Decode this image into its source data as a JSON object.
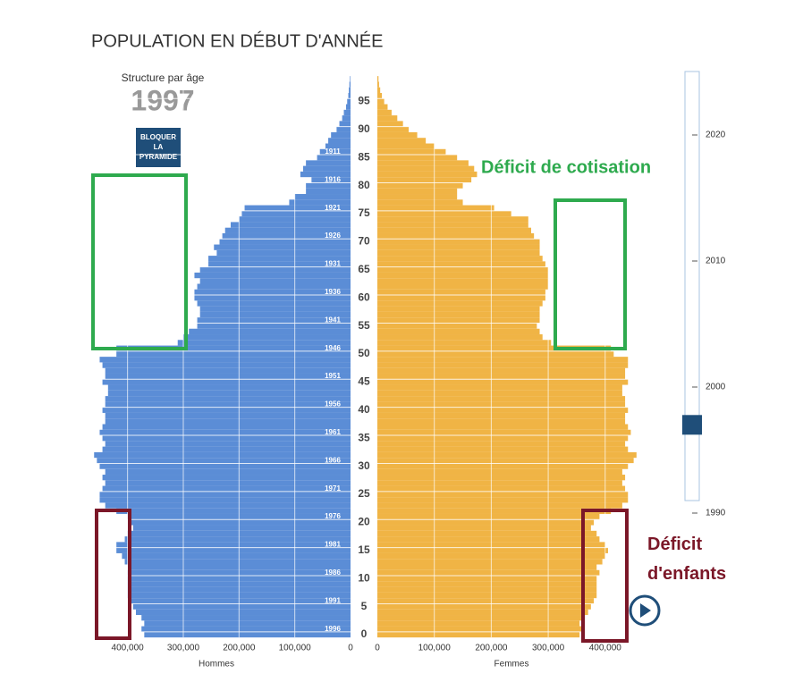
{
  "chart_data": {
    "type": "pyramid",
    "title": "POPULATION EN DÉBUT D'ANNÉE",
    "subtitle": "Structure par âge",
    "button": "BLOQUER LA PYRAMIDE",
    "categories": [
      0,
      1,
      2,
      3,
      4,
      5,
      6,
      7,
      8,
      9,
      10,
      11,
      12,
      13,
      14,
      15,
      16,
      17,
      18,
      19,
      20,
      21,
      22,
      23,
      24,
      25,
      26,
      27,
      28,
      29,
      30,
      31,
      32,
      33,
      34,
      35,
      36,
      37,
      38,
      39,
      40,
      41,
      42,
      43,
      44,
      45,
      46,
      47,
      48,
      49,
      50,
      51,
      52,
      53,
      54,
      55,
      56,
      57,
      58,
      59,
      60,
      61,
      62,
      63,
      64,
      65,
      66,
      67,
      68,
      69,
      70,
      71,
      72,
      73,
      74,
      75,
      76,
      77,
      78,
      79,
      80,
      81,
      82,
      83,
      84,
      85,
      86,
      87,
      88,
      89,
      90,
      91,
      92,
      93,
      94,
      95,
      96,
      97,
      98,
      99
    ],
    "series": [
      {
        "name": "Hommes",
        "color": "#5b8dd6",
        "values": [
          370000,
          375000,
          370000,
          375000,
          385000,
          390000,
          395000,
          400000,
          400000,
          400000,
          400000,
          400000,
          395000,
          405000,
          410000,
          420000,
          420000,
          405000,
          400000,
          390000,
          395000,
          400000,
          420000,
          440000,
          450000,
          450000,
          445000,
          440000,
          445000,
          440000,
          450000,
          455000,
          460000,
          445000,
          440000,
          445000,
          450000,
          445000,
          440000,
          440000,
          445000,
          440000,
          440000,
          435000,
          435000,
          445000,
          440000,
          440000,
          445000,
          450000,
          420000,
          420000,
          310000,
          300000,
          290000,
          275000,
          275000,
          270000,
          270000,
          275000,
          280000,
          280000,
          275000,
          270000,
          280000,
          270000,
          255000,
          255000,
          240000,
          245000,
          235000,
          230000,
          225000,
          215000,
          200000,
          195000,
          190000,
          110000,
          100000,
          80000,
          80000,
          70000,
          90000,
          85000,
          80000,
          60000,
          55000,
          45000,
          40000,
          35000,
          25000,
          20000,
          15000,
          12000,
          8000,
          6000,
          4000,
          3000,
          2000,
          1000
        ]
      },
      {
        "name": "Femmes",
        "color": "#f0b445",
        "values": [
          355000,
          360000,
          355000,
          360000,
          370000,
          375000,
          380000,
          385000,
          385000,
          385000,
          385000,
          390000,
          385000,
          395000,
          400000,
          405000,
          400000,
          390000,
          385000,
          375000,
          380000,
          390000,
          410000,
          430000,
          440000,
          440000,
          435000,
          430000,
          435000,
          430000,
          440000,
          450000,
          455000,
          440000,
          435000,
          440000,
          445000,
          440000,
          435000,
          435000,
          440000,
          435000,
          435000,
          430000,
          430000,
          440000,
          435000,
          435000,
          440000,
          440000,
          415000,
          410000,
          305000,
          290000,
          285000,
          280000,
          285000,
          285000,
          285000,
          290000,
          295000,
          295000,
          300000,
          300000,
          300000,
          300000,
          295000,
          290000,
          285000,
          285000,
          285000,
          275000,
          270000,
          265000,
          265000,
          235000,
          205000,
          150000,
          140000,
          140000,
          150000,
          165000,
          175000,
          170000,
          160000,
          140000,
          120000,
          100000,
          85000,
          70000,
          55000,
          45000,
          35000,
          25000,
          18000,
          12000,
          8000,
          5000,
          3000,
          2000
        ]
      }
    ],
    "xlim": [
      0,
      470000
    ],
    "x2lim": [
      0,
      460000
    ],
    "xticks": [
      0,
      {
        "value": 100000,
        "label": "100,000"
      },
      {
        "value": 200000,
        "label": "200,000"
      },
      {
        "value": 300000,
        "label": "300,000"
      },
      {
        "value": 400000,
        "label": "400,000"
      }
    ],
    "yticks": [
      0,
      5,
      10,
      15,
      20,
      25,
      30,
      35,
      40,
      45,
      50,
      55,
      60,
      65,
      70,
      75,
      80,
      85,
      90,
      95
    ],
    "cohorts": [
      {
        "age": 1,
        "year": 1996
      },
      {
        "age": 6,
        "year": 1991
      },
      {
        "age": 11,
        "year": 1986
      },
      {
        "age": 16,
        "year": 1981
      },
      {
        "age": 21,
        "year": 1976
      },
      {
        "age": 26,
        "year": 1971
      },
      {
        "age": 31,
        "year": 1966
      },
      {
        "age": 36,
        "year": 1961
      },
      {
        "age": 41,
        "year": 1956
      },
      {
        "age": 46,
        "year": 1951
      },
      {
        "age": 51,
        "year": 1946
      },
      {
        "age": 56,
        "year": 1941
      },
      {
        "age": 61,
        "year": 1936
      },
      {
        "age": 66,
        "year": 1931
      },
      {
        "age": 71,
        "year": 1926
      },
      {
        "age": 76,
        "year": 1921
      },
      {
        "age": 81,
        "year": 1916
      },
      {
        "age": 86,
        "year": 1911
      }
    ],
    "annotations": [
      "Déficit de cotisation",
      "Déficit d'enfants"
    ]
  },
  "slider": {
    "ticks": [
      2020,
      2010,
      2000,
      1990
    ],
    "value": 1997
  }
}
